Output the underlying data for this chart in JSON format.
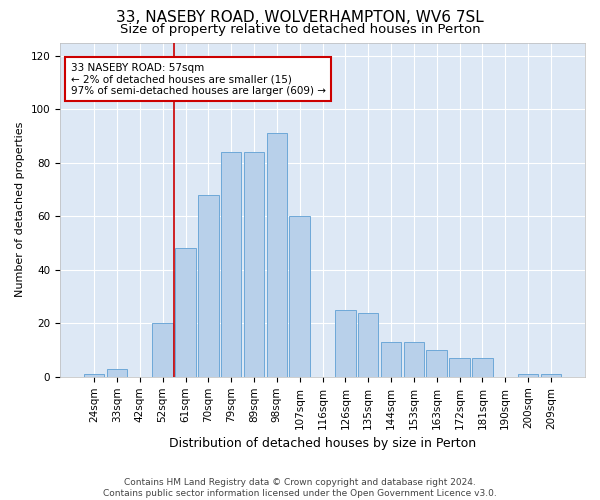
{
  "title_line1": "33, NASEBY ROAD, WOLVERHAMPTON, WV6 7SL",
  "title_line2": "Size of property relative to detached houses in Perton",
  "xlabel": "Distribution of detached houses by size in Perton",
  "ylabel": "Number of detached properties",
  "categories": [
    "24sqm",
    "33sqm",
    "42sqm",
    "52sqm",
    "61sqm",
    "70sqm",
    "79sqm",
    "89sqm",
    "98sqm",
    "107sqm",
    "116sqm",
    "126sqm",
    "135sqm",
    "144sqm",
    "153sqm",
    "163sqm",
    "172sqm",
    "181sqm",
    "190sqm",
    "200sqm",
    "209sqm"
  ],
  "values": [
    1,
    3,
    0,
    20,
    48,
    68,
    84,
    84,
    91,
    60,
    0,
    25,
    24,
    13,
    13,
    10,
    7,
    7,
    0,
    1,
    1
  ],
  "bar_color": "#b8d0ea",
  "bar_edge_color": "#6ea8d8",
  "vline_x": 3.5,
  "vline_color": "#cc0000",
  "annotation_text_line1": "33 NASEBY ROAD: 57sqm",
  "annotation_text_line2": "← 2% of detached houses are smaller (15)",
  "annotation_text_line3": "97% of semi-detached houses are larger (609) →",
  "annotation_box_facecolor": "#ffffff",
  "annotation_box_edgecolor": "#cc0000",
  "ylim": [
    0,
    125
  ],
  "yticks": [
    0,
    20,
    40,
    60,
    80,
    100,
    120
  ],
  "background_color": "#dde8f5",
  "grid_color": "#ffffff",
  "title1_fontsize": 11,
  "title2_fontsize": 9.5,
  "xlabel_fontsize": 9,
  "ylabel_fontsize": 8,
  "tick_fontsize": 7.5,
  "footer_fontsize": 6.5,
  "annotation_fontsize": 7.5
}
